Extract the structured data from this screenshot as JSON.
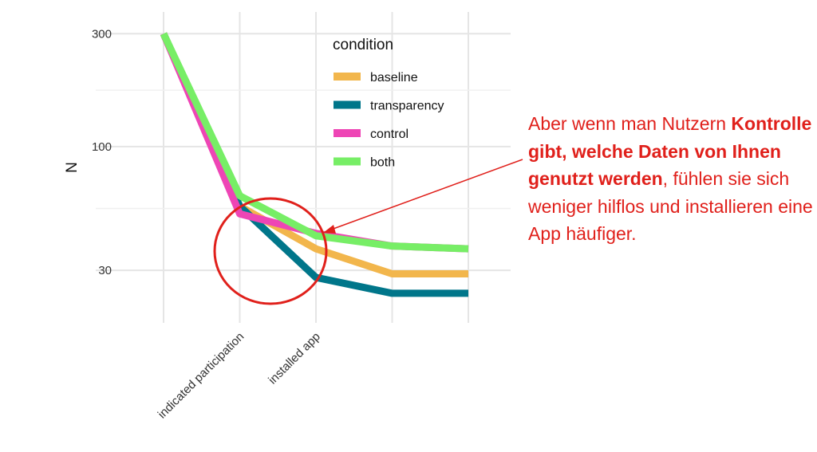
{
  "chart_data": {
    "type": "line",
    "xlabel": "",
    "ylabel": "N",
    "y_scale": "log",
    "ylim": [
      18,
      330
    ],
    "y_ticks": [
      30,
      100,
      300
    ],
    "x": [
      0,
      1,
      2,
      3,
      4
    ],
    "x_tick_labels": [
      "",
      "indicated participation",
      "installed app",
      "",
      ""
    ],
    "grid": true,
    "legend": {
      "title": "condition",
      "placement": "top-center"
    },
    "series": [
      {
        "name": "baseline",
        "color": "#F2B64C",
        "values": [
          300,
          56,
          37,
          29,
          29
        ]
      },
      {
        "name": "transparency",
        "color": "#00768A",
        "values": [
          300,
          56,
          28,
          24,
          24
        ]
      },
      {
        "name": "control",
        "color": "#EE45B5",
        "values": [
          300,
          52,
          43,
          38,
          37
        ]
      },
      {
        "name": "both",
        "color": "#77EE66",
        "values": [
          300,
          62,
          42,
          38,
          37
        ]
      }
    ]
  },
  "annotation": {
    "color": "#E0201B",
    "text_before": "Aber wenn man Nutzern ",
    "text_bold": "Kontrolle gibt, welche Daten von Ihnen genutzt werden",
    "text_after": ", fühlen sie sich weniger hilflos und installieren eine App häufiger."
  }
}
